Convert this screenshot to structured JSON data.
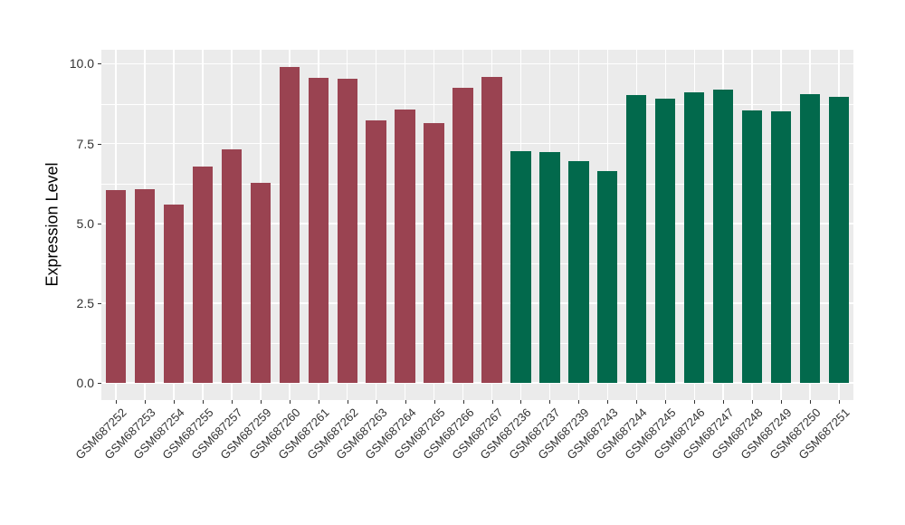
{
  "chart_data": {
    "type": "bar",
    "title": "",
    "xlabel": "",
    "ylabel": "Expression Level",
    "ylim": [
      0,
      10.4
    ],
    "yticks": [
      0,
      2.5,
      5,
      7.5,
      10
    ],
    "ytick_labels": [
      "0.0",
      "2.5",
      "5.0",
      "7.5",
      "10.0"
    ],
    "yminor_ticks": [
      1.25,
      3.75,
      6.25,
      8.75
    ],
    "grid": "major and minor horizontal white gridlines, vertical white gridlines at each category, grey panel",
    "legend_position": "none",
    "categories": [
      "GSM687252",
      "GSM687253",
      "GSM687254",
      "GSM687255",
      "GSM687257",
      "GSM687259",
      "GSM687260",
      "GSM687261",
      "GSM687262",
      "GSM687263",
      "GSM687264",
      "GSM687265",
      "GSM687266",
      "GSM687267",
      "GSM687236",
      "GSM687237",
      "GSM687239",
      "GSM687243",
      "GSM687244",
      "GSM687245",
      "GSM687246",
      "GSM687247",
      "GSM687248",
      "GSM687249",
      "GSM687250",
      "GSM687251"
    ],
    "values": [
      6.05,
      6.07,
      5.6,
      6.78,
      7.32,
      6.28,
      9.89,
      9.57,
      9.53,
      8.23,
      8.56,
      8.15,
      9.25,
      9.58,
      7.26,
      7.23,
      6.94,
      6.63,
      9.01,
      8.91,
      9.1,
      9.19,
      8.53,
      8.51,
      9.06,
      8.97
    ],
    "groups": [
      1,
      1,
      1,
      1,
      1,
      1,
      1,
      1,
      1,
      1,
      1,
      1,
      1,
      1,
      2,
      2,
      2,
      2,
      2,
      2,
      2,
      2,
      2,
      2,
      2,
      2
    ],
    "group_colors": {
      "1": "#9A4351",
      "2": "#02694C"
    }
  },
  "colors": {
    "panel_background": "#EBEBEB",
    "gridline": "#FFFFFF",
    "axis_text": "#323232",
    "tick_mark": "#333333",
    "figure_background": "#FFFFFF"
  }
}
